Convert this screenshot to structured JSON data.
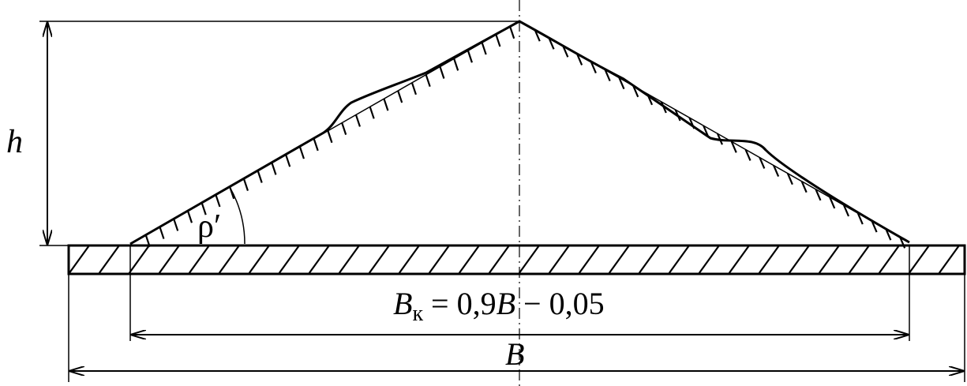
{
  "labels": {
    "height": "h",
    "angle": "ρ′",
    "base": "B"
  },
  "formula": {
    "symbol": "B",
    "subscript": "к",
    "middle": " = 0,9",
    "variable": "B",
    "tail": " − 0,05"
  }
}
